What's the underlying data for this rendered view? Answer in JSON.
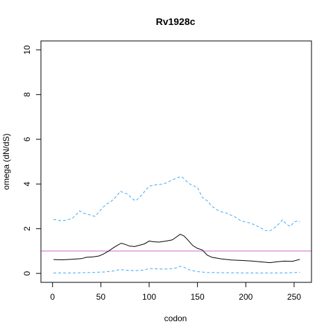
{
  "chart_data": {
    "type": "line",
    "title": "Rv1928c",
    "xlabel": "codon",
    "ylabel": "omega (dN/dS)",
    "xlim": [
      -12,
      268
    ],
    "ylim": [
      -0.4,
      10.4
    ],
    "x_ticks": [
      0,
      50,
      100,
      150,
      200,
      250
    ],
    "y_ticks": [
      0,
      2,
      4,
      6,
      8,
      10
    ],
    "grid": false,
    "legend": "none",
    "reference_line": {
      "y": 1,
      "color": "#cc66cc"
    },
    "series": [
      {
        "role": "estimate",
        "color": "#000000",
        "dash": "solid",
        "points": [
          [
            1,
            0.62
          ],
          [
            10,
            0.61
          ],
          [
            20,
            0.63
          ],
          [
            30,
            0.66
          ],
          [
            35,
            0.72
          ],
          [
            42,
            0.74
          ],
          [
            48,
            0.78
          ],
          [
            52,
            0.85
          ],
          [
            58,
            1.0
          ],
          [
            63,
            1.15
          ],
          [
            68,
            1.28
          ],
          [
            71,
            1.35
          ],
          [
            75,
            1.3
          ],
          [
            80,
            1.22
          ],
          [
            85,
            1.2
          ],
          [
            90,
            1.26
          ],
          [
            95,
            1.32
          ],
          [
            100,
            1.45
          ],
          [
            104,
            1.42
          ],
          [
            110,
            1.4
          ],
          [
            118,
            1.45
          ],
          [
            124,
            1.5
          ],
          [
            128,
            1.62
          ],
          [
            132,
            1.75
          ],
          [
            136,
            1.68
          ],
          [
            140,
            1.5
          ],
          [
            145,
            1.25
          ],
          [
            150,
            1.12
          ],
          [
            155,
            1.05
          ],
          [
            160,
            0.82
          ],
          [
            165,
            0.72
          ],
          [
            175,
            0.65
          ],
          [
            185,
            0.6
          ],
          [
            195,
            0.58
          ],
          [
            205,
            0.56
          ],
          [
            215,
            0.52
          ],
          [
            225,
            0.48
          ],
          [
            232,
            0.52
          ],
          [
            240,
            0.55
          ],
          [
            248,
            0.54
          ],
          [
            252,
            0.58
          ],
          [
            256,
            0.63
          ]
        ]
      },
      {
        "role": "upper bound",
        "color": "#3fa9f5",
        "dash": "dashed",
        "points": [
          [
            1,
            2.42
          ],
          [
            5,
            2.38
          ],
          [
            10,
            2.35
          ],
          [
            15,
            2.4
          ],
          [
            20,
            2.45
          ],
          [
            25,
            2.65
          ],
          [
            28,
            2.8
          ],
          [
            32,
            2.7
          ],
          [
            36,
            2.65
          ],
          [
            40,
            2.6
          ],
          [
            44,
            2.55
          ],
          [
            48,
            2.75
          ],
          [
            52,
            2.95
          ],
          [
            56,
            3.1
          ],
          [
            60,
            3.2
          ],
          [
            64,
            3.35
          ],
          [
            68,
            3.55
          ],
          [
            70,
            3.68
          ],
          [
            74,
            3.6
          ],
          [
            78,
            3.55
          ],
          [
            82,
            3.35
          ],
          [
            86,
            3.25
          ],
          [
            90,
            3.4
          ],
          [
            95,
            3.65
          ],
          [
            100,
            3.9
          ],
          [
            105,
            3.95
          ],
          [
            110,
            3.98
          ],
          [
            115,
            4.0
          ],
          [
            120,
            4.1
          ],
          [
            125,
            4.2
          ],
          [
            130,
            4.3
          ],
          [
            134,
            4.32
          ],
          [
            138,
            4.15
          ],
          [
            142,
            4.0
          ],
          [
            146,
            3.92
          ],
          [
            150,
            3.85
          ],
          [
            155,
            3.4
          ],
          [
            160,
            3.25
          ],
          [
            165,
            3.0
          ],
          [
            170,
            2.85
          ],
          [
            175,
            2.75
          ],
          [
            180,
            2.7
          ],
          [
            185,
            2.6
          ],
          [
            190,
            2.5
          ],
          [
            195,
            2.35
          ],
          [
            200,
            2.3
          ],
          [
            205,
            2.25
          ],
          [
            210,
            2.15
          ],
          [
            215,
            2.05
          ],
          [
            220,
            1.92
          ],
          [
            225,
            1.9
          ],
          [
            230,
            2.05
          ],
          [
            235,
            2.25
          ],
          [
            238,
            2.4
          ],
          [
            242,
            2.2
          ],
          [
            246,
            2.1
          ],
          [
            250,
            2.3
          ],
          [
            254,
            2.35
          ],
          [
            256,
            2.3
          ]
        ]
      },
      {
        "role": "lower bound",
        "color": "#3fa9f5",
        "dash": "dashed",
        "points": [
          [
            1,
            0.02
          ],
          [
            20,
            0.02
          ],
          [
            40,
            0.04
          ],
          [
            55,
            0.07
          ],
          [
            65,
            0.12
          ],
          [
            70,
            0.18
          ],
          [
            75,
            0.15
          ],
          [
            85,
            0.12
          ],
          [
            95,
            0.15
          ],
          [
            100,
            0.22
          ],
          [
            110,
            0.2
          ],
          [
            120,
            0.2
          ],
          [
            128,
            0.25
          ],
          [
            132,
            0.32
          ],
          [
            136,
            0.28
          ],
          [
            142,
            0.15
          ],
          [
            150,
            0.08
          ],
          [
            160,
            0.04
          ],
          [
            180,
            0.03
          ],
          [
            200,
            0.02
          ],
          [
            220,
            0.02
          ],
          [
            240,
            0.02
          ],
          [
            256,
            0.05
          ]
        ]
      }
    ]
  }
}
